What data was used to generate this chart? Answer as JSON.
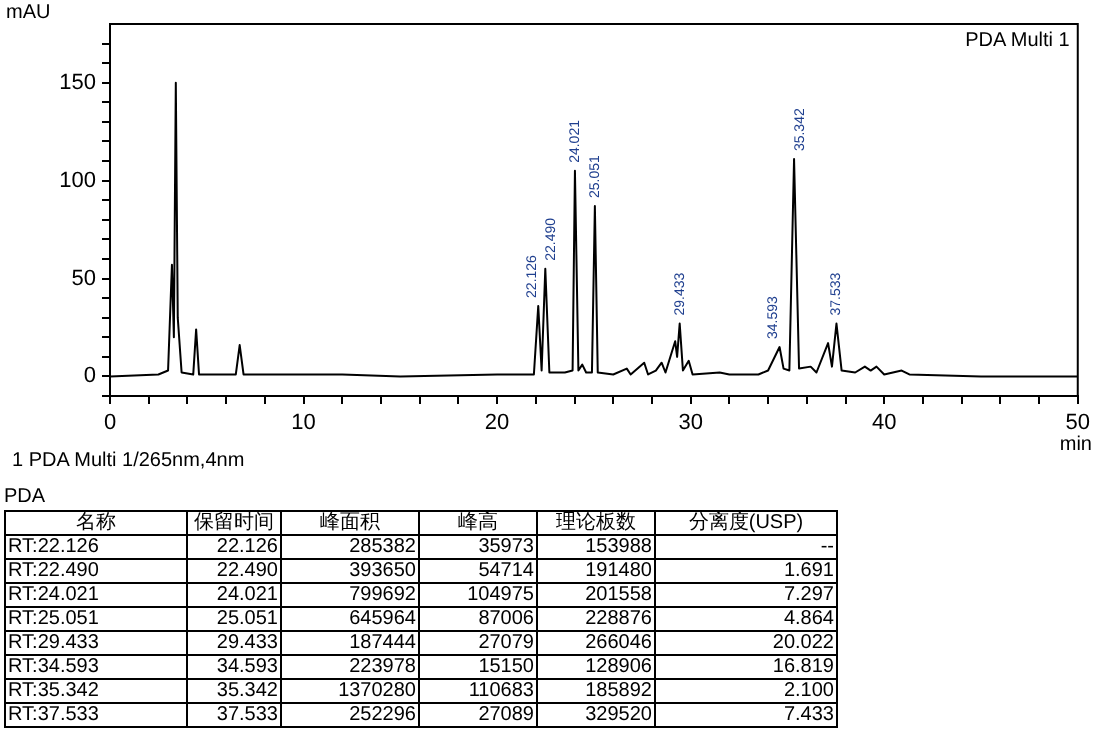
{
  "chart_data": {
    "type": "line",
    "x": [
      0,
      2.5,
      3.0,
      3.2,
      3.3,
      3.4,
      3.5,
      3.7,
      4.3,
      4.45,
      4.6,
      6.5,
      6.7,
      6.9,
      9,
      12,
      15,
      20,
      21.5,
      21.9,
      22.126,
      22.3,
      22.49,
      22.7,
      23.5,
      23.9,
      24.021,
      24.2,
      24.4,
      24.6,
      24.9,
      25.051,
      25.2,
      26,
      26.7,
      26.9,
      27.6,
      27.8,
      28.2,
      28.5,
      28.7,
      29.2,
      29.3,
      29.433,
      29.6,
      29.9,
      30.1,
      31.5,
      32,
      33.5,
      34,
      34.593,
      34.8,
      35.1,
      35.342,
      35.6,
      36.2,
      36.5,
      37.1,
      37.3,
      37.533,
      37.8,
      38.5,
      39,
      39.3,
      39.6,
      40,
      40.9,
      41.3,
      45,
      50
    ],
    "series": [
      {
        "color": "#000000",
        "values": [
          0,
          1,
          3,
          57,
          20,
          150,
          30,
          2,
          1,
          24,
          1,
          1,
          16,
          1,
          1,
          1,
          0,
          1,
          1,
          1,
          36,
          3,
          55,
          2,
          2,
          3,
          105,
          3,
          6,
          2,
          2,
          87,
          2,
          1,
          4,
          1,
          7,
          1,
          3,
          7,
          2,
          18,
          10,
          27,
          3,
          8,
          1,
          2,
          1,
          1,
          3,
          15,
          4,
          3,
          111,
          4,
          5,
          2,
          17,
          5,
          27,
          3,
          2,
          5,
          3,
          5,
          1,
          3,
          1,
          0,
          0
        ]
      }
    ],
    "xlim": [
      0,
      50
    ],
    "ylim": [
      -10,
      180
    ],
    "xticks": [
      0,
      {
        "value": 2,
        "label": null
      },
      {
        "value": 4,
        "label": null
      },
      {
        "value": 6,
        "label": null
      },
      {
        "value": 8,
        "label": null
      },
      10,
      {
        "value": 12,
        "label": null
      },
      {
        "value": 14,
        "label": null
      },
      {
        "value": 16,
        "label": null
      },
      {
        "value": 18,
        "label": null
      },
      20,
      {
        "value": 22,
        "label": null
      },
      {
        "value": 24,
        "label": null
      },
      {
        "value": 26,
        "label": null
      },
      {
        "value": 28,
        "label": null
      },
      30,
      {
        "value": 32,
        "label": null
      },
      {
        "value": 34,
        "label": null
      },
      {
        "value": 36,
        "label": null
      },
      {
        "value": 38,
        "label": null
      },
      40,
      {
        "value": 42,
        "label": null
      },
      {
        "value": 44,
        "label": null
      },
      {
        "value": 46,
        "label": null
      },
      {
        "value": 48,
        "label": null
      },
      50
    ],
    "yticks": [
      {
        "value": -10,
        "label": null
      },
      0,
      {
        "value": 10,
        "label": null
      },
      {
        "value": 20,
        "label": null
      },
      {
        "value": 30,
        "label": null
      },
      {
        "value": 40,
        "label": null
      },
      50,
      {
        "value": 60,
        "label": null
      },
      {
        "value": 70,
        "label": null
      },
      {
        "value": 80,
        "label": null
      },
      {
        "value": 90,
        "label": null
      },
      100,
      {
        "value": 110,
        "label": null
      },
      {
        "value": 120,
        "label": null
      },
      {
        "value": 130,
        "label": null
      },
      {
        "value": 140,
        "label": null
      },
      150,
      {
        "value": 160,
        "label": null
      },
      {
        "value": 170,
        "label": null
      }
    ],
    "xlabel": "min",
    "ylabel": "mAU",
    "grid": false,
    "legend": false,
    "marker": "none",
    "line_style": "solid",
    "annotations": [
      {
        "text": "22.126",
        "x": 22.126,
        "y": 36
      },
      {
        "text": "22.490",
        "x": 22.49,
        "y": 55
      },
      {
        "text": "24.021",
        "x": 24.021,
        "y": 105
      },
      {
        "text": "25.051",
        "x": 25.051,
        "y": 87
      },
      {
        "text": "29.433",
        "x": 29.433,
        "y": 27
      },
      {
        "text": "34.593",
        "x": 34.593,
        "y": 15
      },
      {
        "text": "35.342",
        "x": 35.342,
        "y": 111
      },
      {
        "text": "37.533",
        "x": 37.533,
        "y": 27
      },
      "PDA Multi 1",
      "1   PDA Multi 1/265nm,4nm",
      "PDA",
      "名称",
      "保留时间",
      "峰面积",
      "峰高",
      "理论板数",
      "分离度(USP)",
      "RT:22.126",
      "22.126",
      "285382",
      "35973",
      "153988",
      "--",
      "RT:22.490",
      "22.490",
      "393650",
      "54714",
      "191480",
      "1.691",
      "RT:24.021",
      "24.021",
      "799692",
      "104975",
      "201558",
      "7.297",
      "RT:25.051",
      "25.051",
      "645964",
      "87006",
      "228876",
      "4.864",
      "RT:29.433",
      "29.433",
      "187444",
      "27079",
      "266046",
      "20.022",
      "RT:34.593",
      "34.593",
      "223978",
      "15150",
      "128906",
      "16.819",
      "RT:35.342",
      "35.342",
      "1370280",
      "110683",
      "185892",
      "2.100",
      "RT:37.533",
      "37.533",
      "252296",
      "27089",
      "329520",
      "7.433"
    ]
  }
}
